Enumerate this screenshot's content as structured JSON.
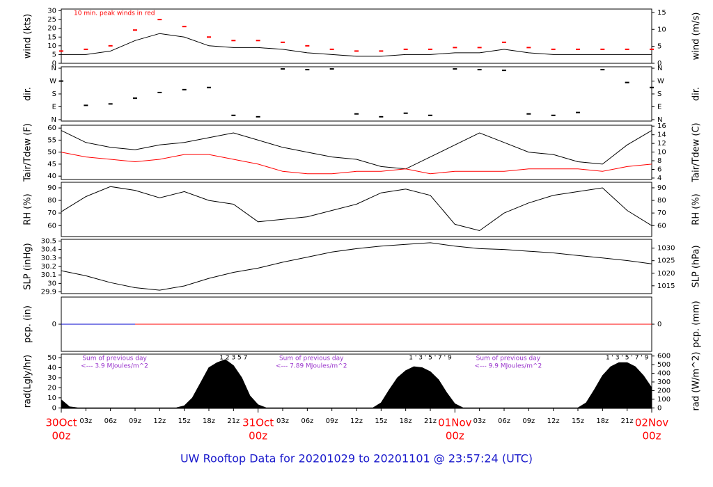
{
  "title": "UW Rooftop Data for 20201029  to  20201101 @ 23:57:24  (UTC)",
  "time_axis": {
    "xlim": [
      0,
      72
    ],
    "xticks": [
      {
        "value": 3,
        "label": "03z"
      },
      {
        "value": 6,
        "label": "06z"
      },
      {
        "value": 9,
        "label": "09z"
      },
      {
        "value": 12,
        "label": "12z"
      },
      {
        "value": 15,
        "label": "15z"
      },
      {
        "value": 18,
        "label": "18z"
      },
      {
        "value": 21,
        "label": "21z"
      },
      {
        "value": 27,
        "label": "03z"
      },
      {
        "value": 30,
        "label": "06z"
      },
      {
        "value": 33,
        "label": "09z"
      },
      {
        "value": 36,
        "label": "12z"
      },
      {
        "value": 39,
        "label": "15z"
      },
      {
        "value": 42,
        "label": "18z"
      },
      {
        "value": 45,
        "label": "21z"
      },
      {
        "value": 51,
        "label": "03z"
      },
      {
        "value": 54,
        "label": "06z"
      },
      {
        "value": 57,
        "label": "09z"
      },
      {
        "value": 60,
        "label": "12z"
      },
      {
        "value": 63,
        "label": "15z"
      },
      {
        "value": 66,
        "label": "18z"
      },
      {
        "value": 69,
        "label": "21z"
      }
    ],
    "day_labels": [
      {
        "value": 0,
        "label": "30Oct",
        "hour": "00z"
      },
      {
        "value": 24,
        "label": "31Oct",
        "hour": "00z"
      },
      {
        "value": 48,
        "label": "01Nov",
        "hour": "00z"
      },
      {
        "value": 72,
        "label": "02Nov",
        "hour": "00z"
      }
    ]
  },
  "chart_data": [
    {
      "type": "line",
      "ylabel": "wind (kts)",
      "y2label": "wind (m/s)",
      "annotations": [
        "10 min. peak winds in red"
      ],
      "ylim": [
        0,
        31
      ],
      "yticks": [
        0,
        5,
        10,
        15,
        20,
        25,
        30
      ],
      "y2lim": [
        0,
        16
      ],
      "y2ticks": [
        0,
        5,
        10,
        15
      ],
      "series": [
        {
          "type": "line",
          "color": "#000000",
          "x": [
            0,
            3,
            6,
            9,
            12,
            15,
            18,
            21,
            24,
            27,
            30,
            33,
            36,
            39,
            42,
            45,
            48,
            51,
            54,
            57,
            60,
            63,
            66,
            69,
            72
          ],
          "values": [
            5,
            5,
            7,
            13,
            17,
            15,
            10,
            9,
            9,
            8,
            6,
            5,
            4,
            4,
            5,
            5,
            6,
            6,
            8,
            6,
            5,
            5,
            5,
            5,
            5
          ]
        },
        {
          "type": "scatter",
          "color": "#ff0000",
          "x": [
            0,
            3,
            6,
            9,
            12,
            15,
            18,
            21,
            24,
            27,
            30,
            33,
            36,
            39,
            42,
            45,
            48,
            51,
            54,
            57,
            60,
            63,
            66,
            69,
            72
          ],
          "values": [
            7,
            8,
            10,
            19,
            25,
            21,
            15,
            13,
            13,
            12,
            10,
            8,
            7,
            7,
            8,
            8,
            9,
            9,
            12,
            9,
            8,
            8,
            8,
            8,
            8
          ]
        }
      ]
    },
    {
      "type": "scatter",
      "ylabel": "dir.",
      "y2label": "dir.",
      "ylim": [
        -10,
        370
      ],
      "yticks": [
        {
          "value": 0,
          "label": "N"
        },
        {
          "value": 90,
          "label": "E"
        },
        {
          "value": 180,
          "label": "S"
        },
        {
          "value": 270,
          "label": "W"
        },
        {
          "value": 360,
          "label": "N"
        }
      ],
      "y2lim": [
        -10,
        370
      ],
      "y2ticks": [
        {
          "value": 0,
          "label": "N"
        },
        {
          "value": 90,
          "label": "E"
        },
        {
          "value": 180,
          "label": "S"
        },
        {
          "value": 270,
          "label": "W"
        },
        {
          "value": 360,
          "label": "N"
        }
      ],
      "series": [
        {
          "type": "scatter",
          "color": "#000000",
          "x": [
            0,
            3,
            6,
            9,
            12,
            15,
            18,
            21,
            24,
            27,
            30,
            33,
            36,
            39,
            42,
            45,
            48,
            51,
            54,
            57,
            60,
            63,
            66,
            69,
            72
          ],
          "values": [
            270,
            100,
            110,
            150,
            190,
            210,
            225,
            30,
            20,
            355,
            350,
            355,
            40,
            20,
            45,
            30,
            355,
            350,
            345,
            40,
            30,
            50,
            350,
            260,
            225
          ]
        }
      ]
    },
    {
      "type": "line",
      "ylabel": "Tair/Tdew (F)",
      "y2label": "Tair/Tdew (C)",
      "ylim": [
        38.6,
        61.2
      ],
      "yticks": [
        40,
        45,
        50,
        55,
        60
      ],
      "y2lim": [
        3.67,
        16.2
      ],
      "y2ticks": [
        4,
        6,
        8,
        10,
        12,
        14,
        16
      ],
      "series": [
        {
          "type": "line",
          "color": "#000000",
          "x": [
            0,
            3,
            6,
            9,
            12,
            15,
            18,
            21,
            24,
            27,
            30,
            33,
            36,
            39,
            42,
            45,
            48,
            51,
            54,
            57,
            60,
            63,
            66,
            69,
            72
          ],
          "values": [
            59,
            54,
            52,
            51,
            53,
            54,
            56,
            58,
            55,
            52,
            50,
            48,
            47,
            44,
            43,
            48,
            53,
            58,
            54,
            50,
            49,
            46,
            45,
            53,
            59
          ]
        },
        {
          "type": "line",
          "color": "#ff0000",
          "x": [
            0,
            3,
            6,
            9,
            12,
            15,
            18,
            21,
            24,
            27,
            30,
            33,
            36,
            39,
            42,
            45,
            48,
            51,
            54,
            57,
            60,
            63,
            66,
            69,
            72
          ],
          "values": [
            50,
            48,
            47,
            46,
            47,
            49,
            49,
            47,
            45,
            42,
            41,
            41,
            42,
            42,
            43,
            41,
            42,
            42,
            42,
            43,
            43,
            43,
            42,
            44,
            45
          ]
        }
      ]
    },
    {
      "type": "line",
      "ylabel": "RH (%)",
      "y2label": "RH (%)",
      "ylim": [
        51.3,
        94.4
      ],
      "yticks": [
        60,
        70,
        80,
        90
      ],
      "y2lim": [
        51.3,
        94.4
      ],
      "y2ticks": [
        60,
        70,
        80,
        90
      ],
      "series": [
        {
          "type": "line",
          "color": "#000000",
          "x": [
            0,
            3,
            6,
            9,
            12,
            15,
            18,
            21,
            24,
            27,
            30,
            33,
            36,
            39,
            42,
            45,
            48,
            51,
            54,
            57,
            60,
            63,
            66,
            69,
            72
          ],
          "values": [
            71,
            83,
            91,
            88,
            82,
            87,
            80,
            77,
            63,
            65,
            67,
            72,
            77,
            86,
            89,
            84,
            61,
            56,
            70,
            78,
            84,
            87,
            90,
            72,
            60
          ]
        }
      ]
    },
    {
      "type": "line",
      "ylabel": "SLP (inHg)",
      "y2label": "SLP (hPa)",
      "ylim": [
        29.88,
        30.52
      ],
      "yticks": [
        29.9,
        30.0,
        30.1,
        30.2,
        30.3,
        30.4,
        30.5
      ],
      "y2lim": [
        1011.9,
        1033.5
      ],
      "y2ticks": [
        1015,
        1020,
        1025,
        1030
      ],
      "series": [
        {
          "type": "line",
          "color": "#000000",
          "x": [
            0,
            3,
            6,
            9,
            12,
            15,
            18,
            21,
            24,
            27,
            30,
            33,
            36,
            39,
            42,
            45,
            48,
            51,
            54,
            57,
            60,
            63,
            66,
            69,
            72
          ],
          "values": [
            30.15,
            30.09,
            30.01,
            29.95,
            29.92,
            29.97,
            30.06,
            30.13,
            30.18,
            30.25,
            30.31,
            30.37,
            30.41,
            30.44,
            30.46,
            30.48,
            30.44,
            30.41,
            30.4,
            30.38,
            30.36,
            30.33,
            30.3,
            30.27,
            30.23
          ]
        }
      ]
    },
    {
      "type": "line",
      "ylabel": "pcp. (in)",
      "y2label": "pcp. (mm)",
      "ylim": [
        -1,
        1
      ],
      "yticks": [
        0
      ],
      "y2lim": [
        -1,
        1
      ],
      "y2ticks": [
        0
      ],
      "series": [
        {
          "type": "line",
          "color": "#0000cc",
          "x": [
            0,
            9
          ],
          "values": [
            0,
            0
          ]
        },
        {
          "type": "line",
          "color": "#ff0000",
          "x": [
            9,
            72
          ],
          "values": [
            0,
            0
          ]
        }
      ]
    },
    {
      "type": "area",
      "ylabel": "rad(Lgly/hr)",
      "y2label": "rad (W/m^2)",
      "annotations": [
        "Sum of previous day",
        "<--- 3.9 MJoules/m^2",
        "1  2  3  5  7",
        "Sum of previous day",
        "<--- 7.89 MJoules/m^2",
        "1 ' 3 ' 5 ' 7 ' 9",
        "Sum of previous day",
        "<--- 9.9 MJoules/m^2",
        "1 ' 3 ' 5 ' 7 ' 9"
      ],
      "ylim": [
        -0.5,
        53.5
      ],
      "yticks": [
        0,
        10,
        20,
        30,
        40,
        50
      ],
      "y2lim": [
        -5.8,
        622
      ],
      "y2ticks": [
        0,
        100,
        200,
        300,
        400,
        500,
        600
      ],
      "series": [
        {
          "type": "area",
          "color": "#000000",
          "x": [
            0,
            1,
            2,
            14,
            15,
            16,
            17,
            18,
            19,
            20,
            21,
            22,
            23,
            24,
            25,
            38,
            39,
            40,
            41,
            42,
            43,
            44,
            45,
            46,
            47,
            48,
            49,
            63,
            64,
            65,
            66,
            67,
            68,
            69,
            70,
            71,
            72
          ],
          "values": [
            8,
            1,
            0,
            0,
            2,
            10,
            25,
            40,
            45,
            48,
            42,
            30,
            12,
            3,
            0,
            0,
            5,
            18,
            30,
            37,
            41,
            40,
            36,
            28,
            15,
            4,
            0,
            0,
            5,
            18,
            32,
            41,
            45,
            45,
            41,
            32,
            20
          ]
        }
      ]
    }
  ]
}
